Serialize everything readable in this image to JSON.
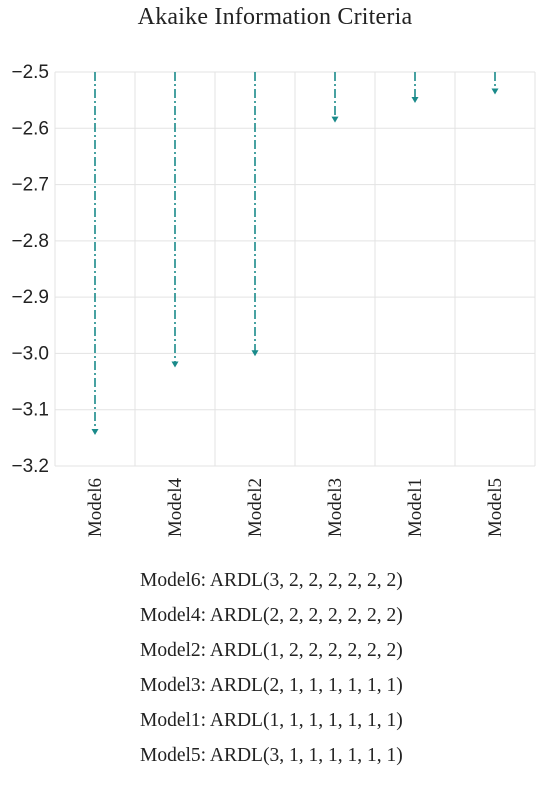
{
  "chart_data": {
    "type": "bar",
    "title": "Akaike Information Criteria",
    "xlabel": "",
    "ylabel": "",
    "categories": [
      "Model6",
      "Model4",
      "Model2",
      "Model3",
      "Model1",
      "Model5"
    ],
    "values": [
      -3.145,
      -3.025,
      -3.005,
      -2.59,
      -2.555,
      -2.54
    ],
    "baseline": -2.5,
    "ylim": [
      -3.2,
      -2.5
    ],
    "yticks": [
      -2.5,
      -2.6,
      -2.7,
      -2.8,
      -2.9,
      -3.0,
      -3.1,
      -3.2
    ],
    "ytick_labels": [
      "−2.5",
      "−2.6",
      "−2.7",
      "−2.8",
      "−2.9",
      "−3.0",
      "−3.1",
      "−3.2"
    ],
    "grid": true,
    "series_color": "#1a8a8a",
    "grid_color": "#e3e3e3"
  },
  "model_list": [
    "Model6: ARDL(3, 2, 2, 2, 2, 2, 2)",
    "Model4: ARDL(2, 2, 2, 2, 2, 2, 2)",
    "Model2: ARDL(1, 2, 2, 2, 2, 2, 2)",
    "Model3: ARDL(2, 1, 1, 1, 1, 1, 1)",
    "Model1: ARDL(1, 1, 1, 1, 1, 1, 1)",
    "Model5: ARDL(3, 1, 1, 1, 1, 1, 1)"
  ]
}
